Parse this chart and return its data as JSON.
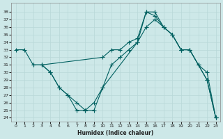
{
  "xlabel": "Humidex (Indice chaleur)",
  "bg_color": "#cde8e8",
  "line_color": "#006060",
  "grid_color": "#b8d8d8",
  "xlim": [
    -0.5,
    23.5
  ],
  "ylim": [
    23.5,
    39.2
  ],
  "yticks": [
    24,
    25,
    26,
    27,
    28,
    29,
    30,
    31,
    32,
    33,
    34,
    35,
    36,
    37,
    38
  ],
  "xticks": [
    0,
    1,
    2,
    3,
    4,
    5,
    6,
    7,
    8,
    9,
    10,
    11,
    12,
    13,
    14,
    15,
    16,
    17,
    18,
    19,
    20,
    21,
    22,
    23
  ],
  "line1_x": [
    0,
    1,
    2,
    3,
    10,
    11,
    12,
    13,
    14,
    15,
    16,
    17,
    18,
    19,
    20,
    21,
    22,
    23
  ],
  "line1_y": [
    33,
    33,
    31,
    31,
    32,
    33,
    33,
    34,
    34.5,
    38,
    38,
    36,
    35,
    33,
    33,
    31,
    29,
    24
  ],
  "line2_x": [
    2,
    3,
    4,
    5,
    6,
    7,
    8,
    9,
    10,
    14,
    15,
    16,
    17,
    18,
    19,
    20,
    21,
    22,
    23
  ],
  "line2_y": [
    31,
    31,
    30,
    28,
    27,
    25,
    25,
    26,
    28,
    34,
    36,
    37,
    36,
    35,
    33,
    33,
    31,
    30,
    24
  ],
  "line3_x": [
    3,
    4,
    5,
    6,
    7,
    8,
    9,
    10,
    11,
    12,
    13,
    14,
    15,
    16,
    17,
    18,
    19,
    20,
    21,
    22,
    23
  ],
  "line3_y": [
    31,
    30,
    28,
    27,
    26,
    25,
    25,
    28,
    31,
    32,
    33,
    34,
    38,
    37.5,
    36,
    35,
    33,
    33,
    31,
    29,
    24
  ]
}
